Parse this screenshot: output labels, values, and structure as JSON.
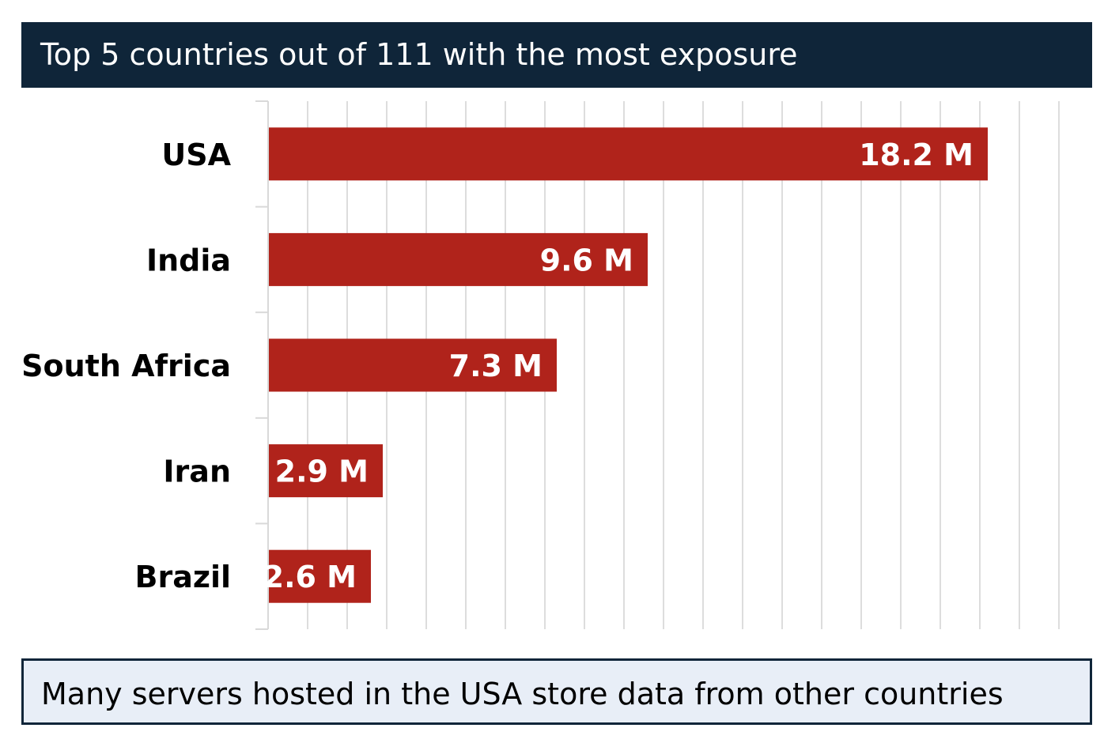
{
  "header": {
    "title": "Top 5 countries out of 111 with the most exposure"
  },
  "footer": {
    "note": "Many servers hosted in the USA store data from other countries"
  },
  "colors": {
    "title_bg": "#0f2539",
    "bar": "#b0231b",
    "grid": "#dddddd",
    "callout_bg": "#e8eef7",
    "callout_border": "#0f2539"
  },
  "chart_data": {
    "type": "bar",
    "orientation": "horizontal",
    "categories": [
      "USA",
      "India",
      "South Africa",
      "Iran",
      "Brazil"
    ],
    "values": [
      18.2,
      9.6,
      7.3,
      2.9,
      2.6
    ],
    "data_labels": [
      "18.2 M",
      "9.6 M",
      "7.3 M",
      "2.9 M",
      "2.6 M"
    ],
    "title": "Top 5 countries out of 111 with the most exposure",
    "xlabel": "",
    "ylabel": "",
    "xlim": [
      0,
      20
    ],
    "grid": true,
    "legend": "none"
  }
}
